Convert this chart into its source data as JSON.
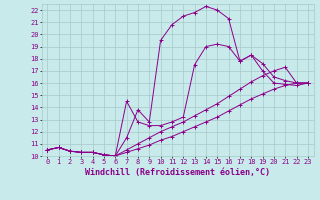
{
  "background_color": "#c8eaea",
  "grid_color": "#a8c8c8",
  "line_color": "#8b008b",
  "marker": "+",
  "xlabel": "Windchill (Refroidissement éolien,°C)",
  "xlabel_fontsize": 6,
  "xtick_fontsize": 5,
  "ytick_fontsize": 5,
  "xlim": [
    -0.5,
    23.5
  ],
  "ylim": [
    10,
    22.5
  ],
  "xticks": [
    0,
    1,
    2,
    3,
    4,
    5,
    6,
    7,
    8,
    9,
    10,
    11,
    12,
    13,
    14,
    15,
    16,
    17,
    18,
    19,
    20,
    21,
    22,
    23
  ],
  "yticks": [
    10,
    11,
    12,
    13,
    14,
    15,
    16,
    17,
    18,
    19,
    20,
    21,
    22
  ],
  "series": [
    {
      "x": [
        0,
        1,
        2,
        3,
        4,
        5,
        6,
        7,
        8,
        9,
        10,
        11,
        12,
        13,
        14,
        15,
        16,
        17,
        18,
        19,
        20,
        21,
        22,
        23
      ],
      "y": [
        10.5,
        10.7,
        10.4,
        10.3,
        10.3,
        10.1,
        10.0,
        10.3,
        10.6,
        10.9,
        11.3,
        11.6,
        12.0,
        12.4,
        12.8,
        13.2,
        13.7,
        14.2,
        14.7,
        15.1,
        15.5,
        15.8,
        16.0,
        16.0
      ]
    },
    {
      "x": [
        0,
        1,
        2,
        3,
        4,
        5,
        6,
        7,
        8,
        9,
        10,
        11,
        12,
        13,
        14,
        15,
        16,
        17,
        18,
        19,
        20,
        21,
        22,
        23
      ],
      "y": [
        10.5,
        10.7,
        10.4,
        10.3,
        10.3,
        10.1,
        10.0,
        10.5,
        11.0,
        11.5,
        12.0,
        12.4,
        12.8,
        13.3,
        13.8,
        14.3,
        14.9,
        15.5,
        16.1,
        16.6,
        17.0,
        17.3,
        16.0,
        16.0
      ]
    },
    {
      "x": [
        0,
        1,
        2,
        3,
        4,
        5,
        6,
        7,
        8,
        9,
        10,
        11,
        12,
        13,
        14,
        15,
        16,
        17,
        18,
        19,
        20,
        21,
        22,
        23
      ],
      "y": [
        10.5,
        10.7,
        10.4,
        10.3,
        10.3,
        10.1,
        10.0,
        14.5,
        12.8,
        12.5,
        12.5,
        12.8,
        13.2,
        17.5,
        19.0,
        19.2,
        19.0,
        17.8,
        18.3,
        17.6,
        16.5,
        16.2,
        16.0,
        16.0
      ]
    },
    {
      "x": [
        0,
        1,
        2,
        3,
        4,
        5,
        6,
        7,
        8,
        9,
        10,
        11,
        12,
        13,
        14,
        15,
        16,
        17,
        18,
        19,
        20,
        21,
        22,
        23
      ],
      "y": [
        10.5,
        10.7,
        10.4,
        10.3,
        10.3,
        10.1,
        10.0,
        11.5,
        13.8,
        12.8,
        19.5,
        20.8,
        21.5,
        21.8,
        22.3,
        22.0,
        21.3,
        17.8,
        18.3,
        17.0,
        16.0,
        15.9,
        15.8,
        16.0
      ]
    }
  ]
}
